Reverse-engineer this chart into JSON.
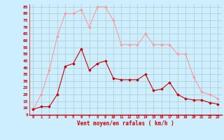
{
  "hours": [
    0,
    1,
    2,
    3,
    4,
    5,
    6,
    7,
    8,
    9,
    10,
    11,
    12,
    13,
    14,
    15,
    16,
    17,
    18,
    19,
    20,
    21,
    22,
    23
  ],
  "vent_moyen": [
    9,
    11,
    11,
    20,
    41,
    43,
    54,
    38,
    43,
    45,
    32,
    31,
    31,
    31,
    35,
    23,
    24,
    29,
    20,
    17,
    16,
    16,
    14,
    13
  ],
  "rafales": [
    9,
    20,
    38,
    63,
    80,
    80,
    83,
    70,
    85,
    85,
    75,
    57,
    57,
    57,
    65,
    57,
    57,
    57,
    50,
    50,
    33,
    22,
    20,
    17
  ],
  "ylabel_values": [
    5,
    10,
    15,
    20,
    25,
    30,
    35,
    40,
    45,
    50,
    55,
    60,
    65,
    70,
    75,
    80,
    85
  ],
  "xlabel": "Vent moyen/en rafales ( km/h )",
  "bg_color": "#cceeff",
  "grid_color": "#aacccc",
  "line_color_moyen": "#cc0000",
  "line_color_rafales": "#ff9999",
  "ylim": [
    5,
    87
  ],
  "xlim": [
    -0.5,
    23.5
  ]
}
